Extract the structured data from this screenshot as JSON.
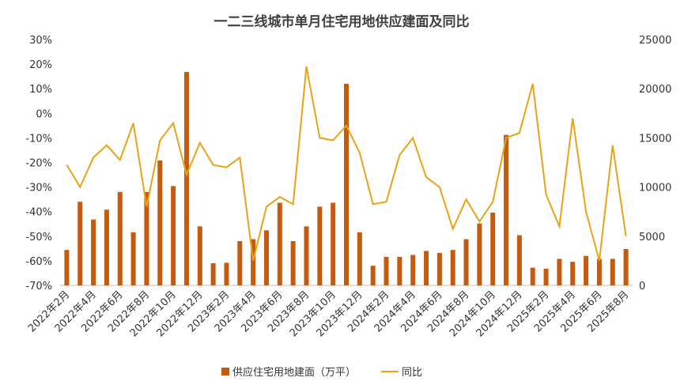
{
  "chart_data": {
    "type": "bar_line",
    "title": "一二三线城市单月住宅用地供应建面及同比",
    "categories": [
      "2022年2月",
      null,
      "2022年4月",
      null,
      "2022年6月",
      null,
      "2022年8月",
      null,
      "2022年10月",
      null,
      "2022年12月",
      null,
      "2023年2月",
      null,
      "2023年4月",
      null,
      "2023年6月",
      null,
      "2023年8月",
      null,
      "2023年10月",
      null,
      "2023年12月",
      null,
      "2024年2月",
      null,
      "2024年4月",
      null,
      "2024年6月",
      null,
      "2024年8月",
      null,
      "2024年10月",
      null,
      "2024年12月",
      null,
      "2025年2月",
      null,
      "2025年4月",
      null,
      "2025年6月",
      null,
      "2025年8月"
    ],
    "series": [
      {
        "name": "供应住宅用地建面（万平）",
        "type": "bar",
        "axis": "y2",
        "color": "#c55a11",
        "values": [
          3600,
          8500,
          6700,
          7700,
          9500,
          5400,
          9500,
          12700,
          10100,
          21700,
          6000,
          2250,
          2300,
          4500,
          4700,
          5600,
          8400,
          4500,
          6000,
          8000,
          8400,
          20500,
          5400,
          2000,
          2900,
          2900,
          3100,
          3500,
          3300,
          3600,
          4700,
          6300,
          7400,
          15300,
          5100,
          1800,
          1700,
          2700,
          2400,
          3000,
          2700,
          2700,
          3700
        ]
      },
      {
        "name": "同比",
        "type": "line",
        "axis": "y",
        "color": "#e8a317",
        "values": [
          -21,
          -30,
          -18,
          -13,
          -19,
          -4,
          -38,
          -11,
          -4,
          -25,
          -12,
          -21,
          -22,
          -18,
          -60,
          -38,
          -34,
          -37,
          19,
          -10,
          -11,
          -5,
          -16,
          -37,
          -36,
          -17,
          -10,
          -26,
          -30,
          -47,
          -35,
          -44,
          -36,
          -10,
          -8,
          12,
          -33,
          -46,
          -2,
          -40,
          -60,
          -13,
          -50
        ]
      }
    ],
    "ylim": [
      -70,
      30
    ],
    "yticks": [
      {
        "value": 30,
        "label": "30%"
      },
      {
        "value": 20,
        "label": "20%"
      },
      {
        "value": 10,
        "label": "10%"
      },
      {
        "value": 0,
        "label": "0%"
      },
      {
        "value": -10,
        "label": "-10%"
      },
      {
        "value": -20,
        "label": "-20%"
      },
      {
        "value": -30,
        "label": "-30%"
      },
      {
        "value": -40,
        "label": "-40%"
      },
      {
        "value": -50,
        "label": "-50%"
      },
      {
        "value": -60,
        "label": "-60%"
      },
      {
        "value": -70,
        "label": "-70%"
      }
    ],
    "y2lim": [
      0,
      25000
    ],
    "y2ticks": [
      0,
      5000,
      10000,
      15000,
      20000,
      25000
    ],
    "legend": "bottom"
  }
}
